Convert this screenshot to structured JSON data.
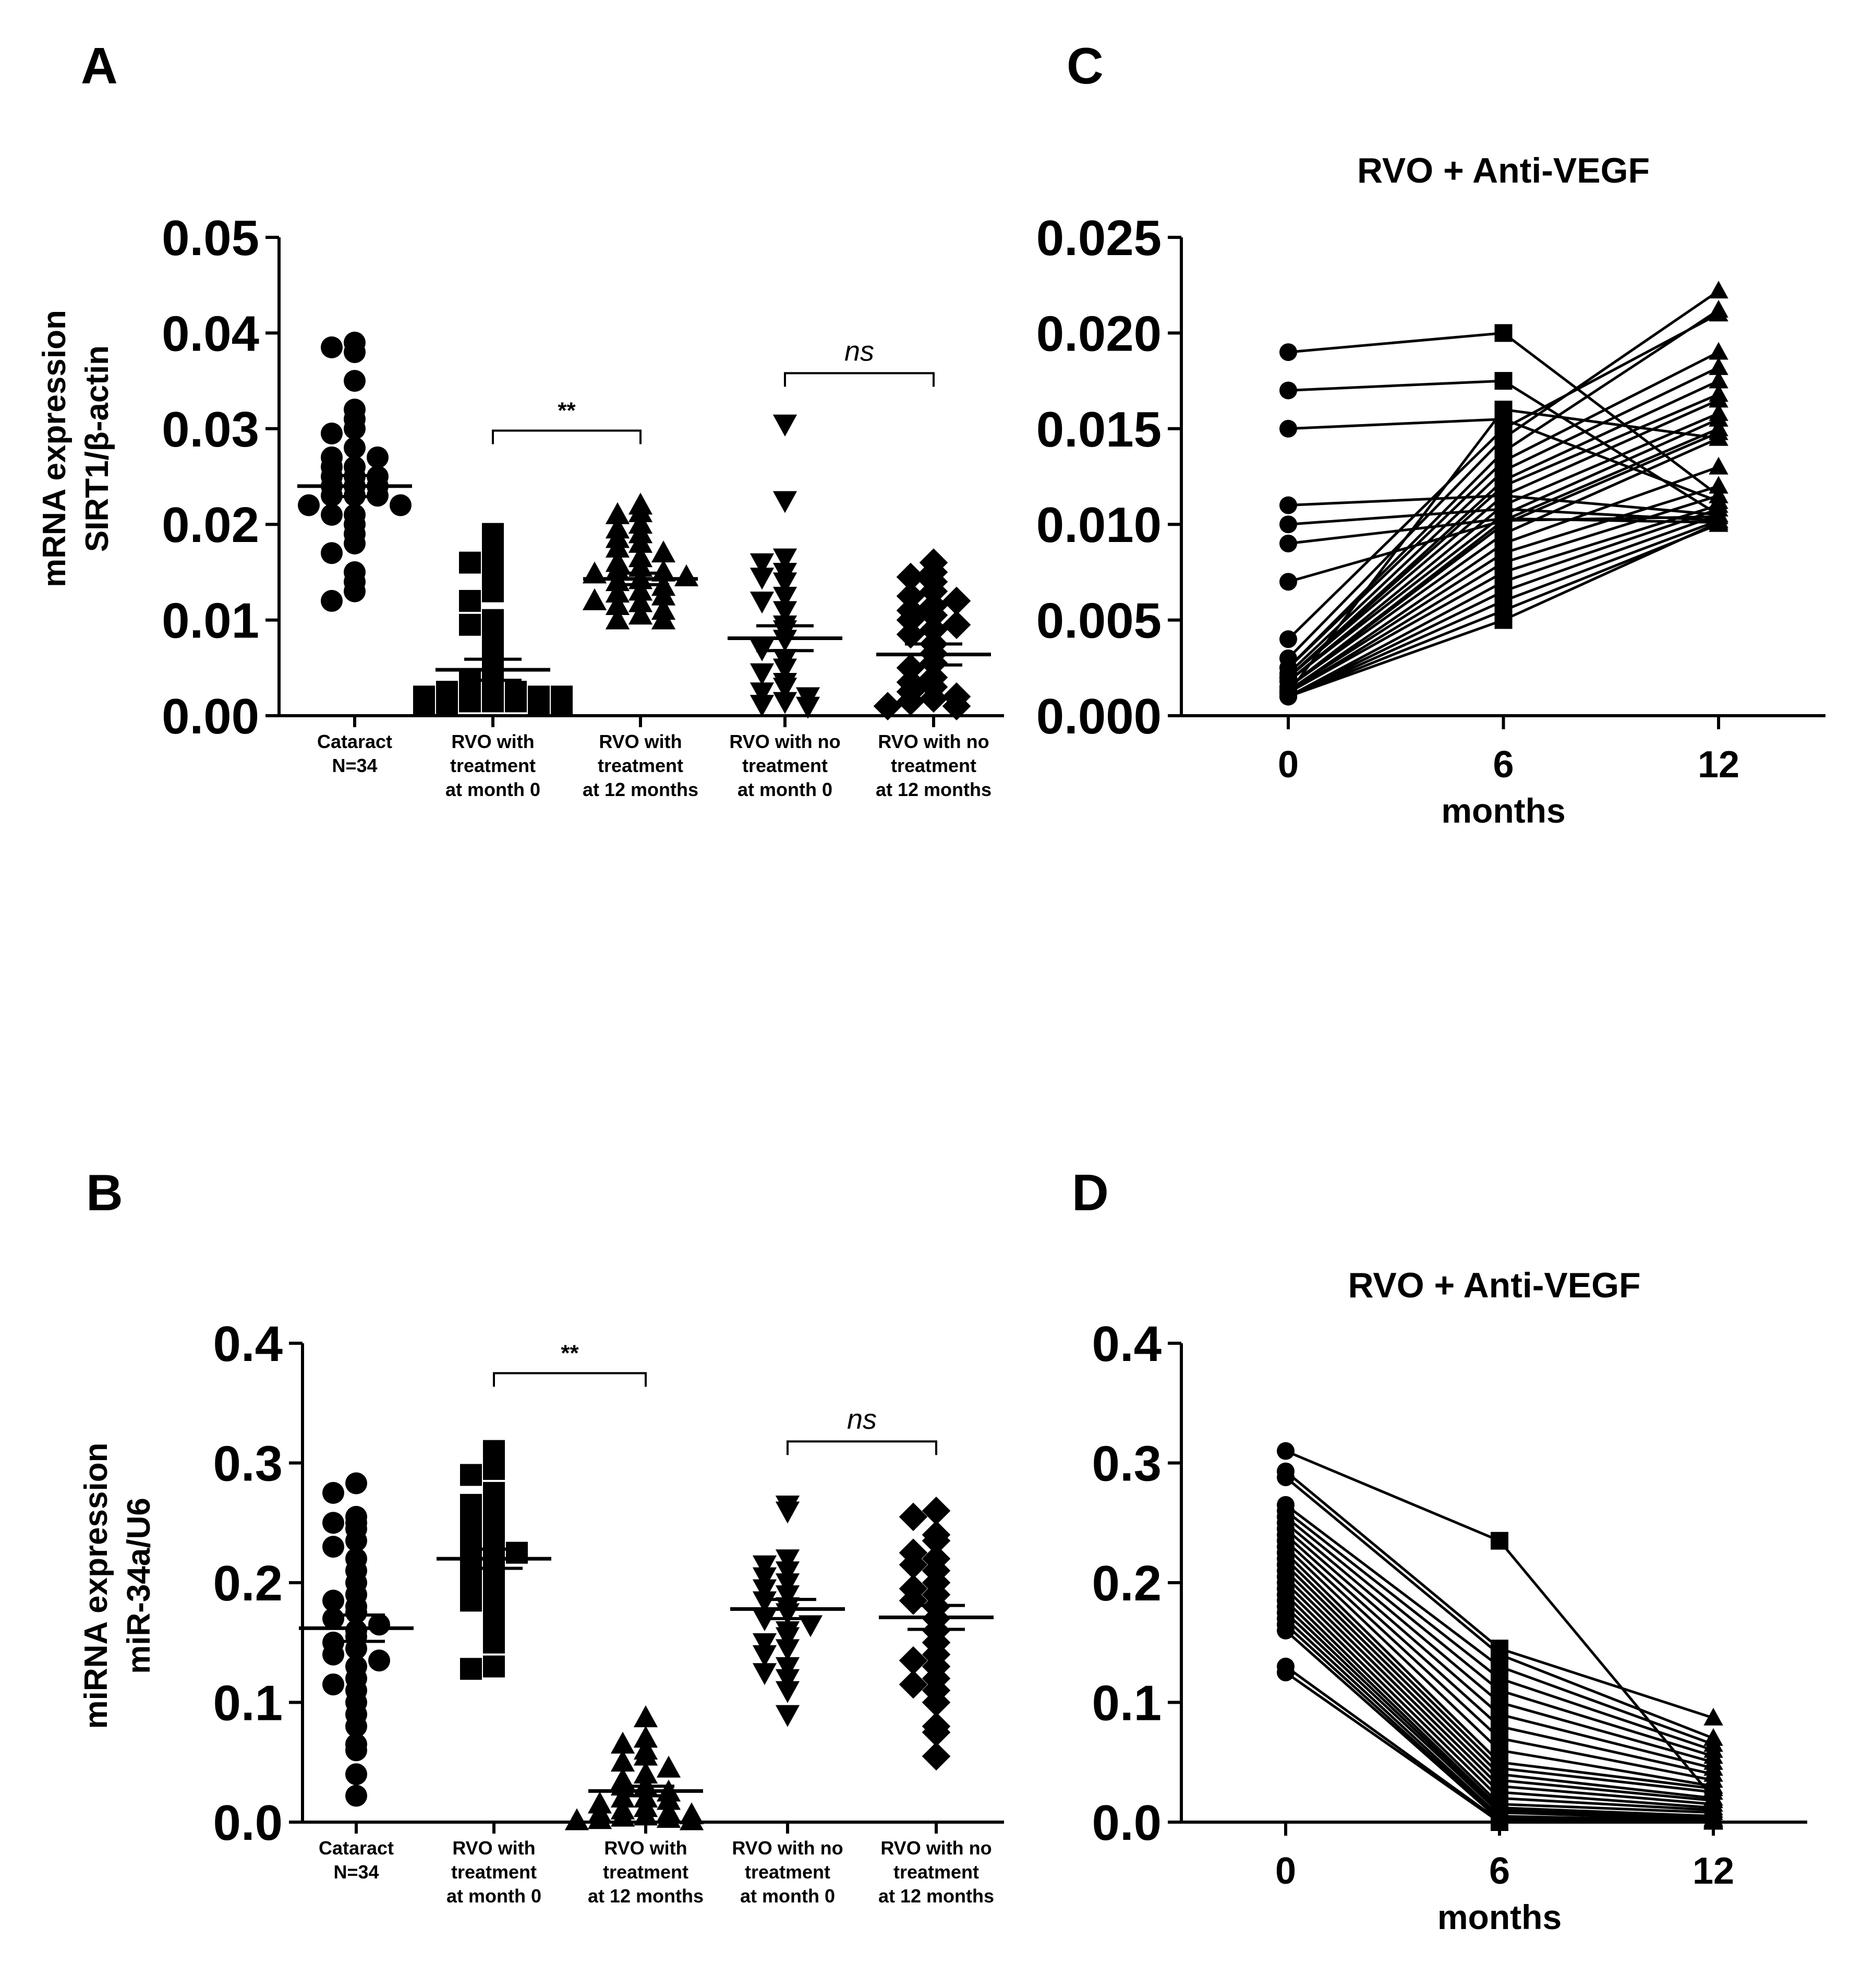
{
  "panel_letters": [
    "A",
    "B",
    "C",
    "D"
  ],
  "chart_data": [
    {
      "id": "A",
      "type": "scatter",
      "ylabel": [
        "mRNA expression",
        "SIRT1/β-actin"
      ],
      "ylim": [
        0,
        0.05
      ],
      "yticks": [
        "0.00",
        "0.01",
        "0.02",
        "0.03",
        "0.04",
        "0.05"
      ],
      "categories": [
        [
          "Cataract",
          "N=34"
        ],
        [
          "RVO with",
          "treatment",
          "at month 0"
        ],
        [
          "RVO with",
          "treatment",
          "at 12 months"
        ],
        [
          "RVO with no",
          "treatment",
          "at month 0"
        ],
        [
          "RVO with no",
          "treatment",
          "at 12 months"
        ]
      ],
      "markers": [
        "circle",
        "square",
        "triangle-up",
        "triangle-down",
        "diamond"
      ],
      "means": [
        0.024,
        0.0048,
        0.0143,
        0.0081,
        0.0064
      ],
      "sem": [
        0.0011,
        0.0011,
        0.0006,
        0.0013,
        0.0011
      ],
      "values": [
        [
          0.039,
          0.0385,
          0.038,
          0.035,
          0.032,
          0.031,
          0.03,
          0.0295,
          0.028,
          0.027,
          0.027,
          0.026,
          0.026,
          0.025,
          0.025,
          0.025,
          0.024,
          0.024,
          0.024,
          0.023,
          0.023,
          0.023,
          0.022,
          0.022,
          0.021,
          0.021,
          0.02,
          0.019,
          0.018,
          0.017,
          0.015,
          0.014,
          0.013,
          0.012
        ],
        [
          0.019,
          0.0172,
          0.016,
          0.016,
          0.014,
          0.013,
          0.012,
          0.01,
          0.0095,
          0.0085,
          0.008,
          0.006,
          0.0045,
          0.004,
          0.0035,
          0.003,
          0.003,
          0.0025,
          0.0025,
          0.002,
          0.002,
          0.002,
          0.0015,
          0.0015,
          0.0015,
          0.001,
          0.001,
          0.001,
          0.001
        ],
        [
          0.022,
          0.0212,
          0.021,
          0.02,
          0.0195,
          0.019,
          0.0185,
          0.018,
          0.0175,
          0.017,
          0.0165,
          0.016,
          0.0155,
          0.0152,
          0.015,
          0.0148,
          0.0145,
          0.0142,
          0.014,
          0.0135,
          0.013,
          0.0128,
          0.0125,
          0.012,
          0.0118,
          0.0115,
          0.011,
          0.0105,
          0.01,
          0.01
        ],
        [
          0.0305,
          0.0225,
          0.0165,
          0.016,
          0.015,
          0.0145,
          0.014,
          0.0125,
          0.012,
          0.011,
          0.0095,
          0.009,
          0.008,
          0.007,
          0.006,
          0.005,
          0.0045,
          0.0035,
          0.003,
          0.0025,
          0.002,
          0.0015,
          0.0012,
          0.001
        ],
        [
          0.016,
          0.015,
          0.0145,
          0.014,
          0.013,
          0.0125,
          0.012,
          0.0115,
          0.011,
          0.0105,
          0.01,
          0.0095,
          0.009,
          0.0085,
          0.0075,
          0.0065,
          0.0055,
          0.005,
          0.004,
          0.0035,
          0.003,
          0.0025,
          0.002,
          0.0018,
          0.0015,
          0.001,
          0.001
        ]
      ],
      "brackets": [
        {
          "from": 1,
          "to": 2,
          "y": 0.0298,
          "label": "**",
          "italic": false
        },
        {
          "from": 3,
          "to": 4,
          "y": 0.0358,
          "label": "ns",
          "italic": true
        }
      ]
    },
    {
      "id": "B",
      "type": "scatter",
      "ylabel": [
        "miRNA expression",
        "miR-34a/U6"
      ],
      "ylim": [
        0,
        0.4
      ],
      "yticks": [
        "0.0",
        "0.1",
        "0.2",
        "0.3",
        "0.4"
      ],
      "categories": [
        [
          "Cataract",
          "N=34"
        ],
        [
          "RVO with",
          "treatment",
          "at month 0"
        ],
        [
          "RVO with",
          "treatment",
          "at 12 months"
        ],
        [
          "RVO with no",
          "treatment",
          "at month 0"
        ],
        [
          "RVO with no",
          "treatment",
          "at 12 months"
        ]
      ],
      "markers": [
        "circle",
        "square",
        "triangle-up",
        "triangle-down",
        "diamond"
      ],
      "means": [
        0.162,
        0.22,
        0.026,
        0.178,
        0.171
      ],
      "sem": [
        0.011,
        0.008,
        0.004,
        0.008,
        0.01
      ],
      "values": [
        [
          0.283,
          0.275,
          0.255,
          0.25,
          0.25,
          0.245,
          0.235,
          0.23,
          0.22,
          0.21,
          0.2,
          0.19,
          0.185,
          0.18,
          0.175,
          0.17,
          0.165,
          0.16,
          0.155,
          0.15,
          0.145,
          0.14,
          0.135,
          0.13,
          0.12,
          0.115,
          0.11,
          0.1,
          0.09,
          0.08,
          0.065,
          0.06,
          0.04,
          0.022
        ],
        [
          0.31,
          0.295,
          0.29,
          0.275,
          0.27,
          0.265,
          0.26,
          0.255,
          0.25,
          0.245,
          0.24,
          0.235,
          0.23,
          0.225,
          0.22,
          0.215,
          0.21,
          0.205,
          0.2,
          0.195,
          0.19,
          0.185,
          0.18,
          0.17,
          0.16,
          0.15,
          0.13,
          0.128
        ],
        [
          0.087,
          0.07,
          0.065,
          0.06,
          0.055,
          0.05,
          0.045,
          0.04,
          0.035,
          0.03,
          0.03,
          0.025,
          0.02,
          0.02,
          0.018,
          0.015,
          0.012,
          0.01,
          0.008,
          0.007,
          0.006,
          0.005,
          0.004,
          0.003,
          0.002,
          0.001,
          0.001
        ],
        [
          0.265,
          0.26,
          0.22,
          0.215,
          0.21,
          0.205,
          0.2,
          0.195,
          0.19,
          0.185,
          0.18,
          0.175,
          0.17,
          0.165,
          0.16,
          0.155,
          0.15,
          0.145,
          0.14,
          0.13,
          0.125,
          0.12,
          0.11,
          0.09
        ],
        [
          0.26,
          0.255,
          0.24,
          0.235,
          0.225,
          0.22,
          0.215,
          0.21,
          0.2,
          0.195,
          0.19,
          0.185,
          0.18,
          0.17,
          0.16,
          0.15,
          0.14,
          0.135,
          0.13,
          0.12,
          0.115,
          0.11,
          0.1,
          0.08,
          0.075,
          0.055
        ]
      ],
      "brackets": [
        {
          "from": 1,
          "to": 2,
          "y": 0.375,
          "label": "**",
          "italic": false
        },
        {
          "from": 3,
          "to": 4,
          "y": 0.318,
          "label": "ns",
          "italic": true
        }
      ]
    },
    {
      "id": "C",
      "type": "line",
      "title": "RVO + Anti-VEGF",
      "xlabel": "months",
      "x": [
        0,
        6,
        12
      ],
      "xticks": [
        "0",
        "6",
        "12"
      ],
      "ylim": [
        0,
        0.025
      ],
      "yticks": [
        "0.000",
        "0.005",
        "0.010",
        "0.015",
        "0.020",
        "0.025"
      ],
      "markers": [
        "circle",
        "square",
        "triangle-up"
      ],
      "series": [
        [
          0.019,
          0.02,
          0.0115
        ],
        [
          0.017,
          0.0175,
          0.0105
        ],
        [
          0.015,
          0.0155,
          0.0112
        ],
        [
          0.011,
          0.0115,
          0.0105
        ],
        [
          0.01,
          0.0108,
          0.0102
        ],
        [
          0.009,
          0.0103,
          0.0101
        ],
        [
          0.007,
          0.0102,
          0.0104
        ],
        [
          0.004,
          0.015,
          0.021
        ],
        [
          0.003,
          0.0145,
          0.0222
        ],
        [
          0.0025,
          0.0138,
          0.0212
        ],
        [
          0.0025,
          0.0133,
          0.019
        ],
        [
          0.0022,
          0.0128,
          0.0182
        ],
        [
          0.002,
          0.0123,
          0.0175
        ],
        [
          0.002,
          0.012,
          0.0168
        ],
        [
          0.002,
          0.0115,
          0.0165
        ],
        [
          0.0018,
          0.011,
          0.0158
        ],
        [
          0.0018,
          0.0105,
          0.0155
        ],
        [
          0.0015,
          0.0102,
          0.015
        ],
        [
          0.0015,
          0.01,
          0.0148
        ],
        [
          0.0015,
          0.0095,
          0.0145
        ],
        [
          0.0013,
          0.009,
          0.013
        ],
        [
          0.0013,
          0.0085,
          0.012
        ],
        [
          0.0012,
          0.008,
          0.0115
        ],
        [
          0.0012,
          0.0075,
          0.011
        ],
        [
          0.001,
          0.007,
          0.0108
        ],
        [
          0.001,
          0.0065,
          0.0105
        ],
        [
          0.001,
          0.006,
          0.0102
        ],
        [
          0.001,
          0.0055,
          0.01
        ],
        [
          0.001,
          0.005,
          0.0101
        ],
        [
          0.0012,
          0.016,
          0.0145
        ]
      ]
    },
    {
      "id": "D",
      "type": "line",
      "title": "RVO + Anti-VEGF",
      "xlabel": "months",
      "x": [
        0,
        6,
        12
      ],
      "xticks": [
        "0",
        "6",
        "12"
      ],
      "ylim": [
        0,
        0.4
      ],
      "yticks": [
        "0.0",
        "0.1",
        "0.2",
        "0.3",
        "0.4"
      ],
      "markers": [
        "circle",
        "square",
        "triangle-up"
      ],
      "series": [
        [
          0.31,
          0.235,
          0.02
        ],
        [
          0.293,
          0.145,
          0.087
        ],
        [
          0.288,
          0.14,
          0.07
        ],
        [
          0.265,
          0.13,
          0.065
        ],
        [
          0.26,
          0.12,
          0.06
        ],
        [
          0.255,
          0.11,
          0.055
        ],
        [
          0.25,
          0.1,
          0.05
        ],
        [
          0.245,
          0.09,
          0.045
        ],
        [
          0.24,
          0.08,
          0.04
        ],
        [
          0.235,
          0.07,
          0.035
        ],
        [
          0.23,
          0.06,
          0.03
        ],
        [
          0.225,
          0.05,
          0.028
        ],
        [
          0.22,
          0.045,
          0.025
        ],
        [
          0.215,
          0.04,
          0.02
        ],
        [
          0.21,
          0.035,
          0.018
        ],
        [
          0.205,
          0.03,
          0.015
        ],
        [
          0.2,
          0.025,
          0.012
        ],
        [
          0.195,
          0.02,
          0.01
        ],
        [
          0.19,
          0.015,
          0.008
        ],
        [
          0.185,
          0.012,
          0.005
        ],
        [
          0.18,
          0.01,
          0.003
        ],
        [
          0.175,
          0.008,
          0.002
        ],
        [
          0.17,
          0.005,
          0.001
        ],
        [
          0.165,
          0.003,
          0.001
        ],
        [
          0.16,
          0.002,
          0.0
        ],
        [
          0.13,
          0.001,
          0.0
        ],
        [
          0.125,
          0.0,
          0.0
        ]
      ]
    }
  ]
}
